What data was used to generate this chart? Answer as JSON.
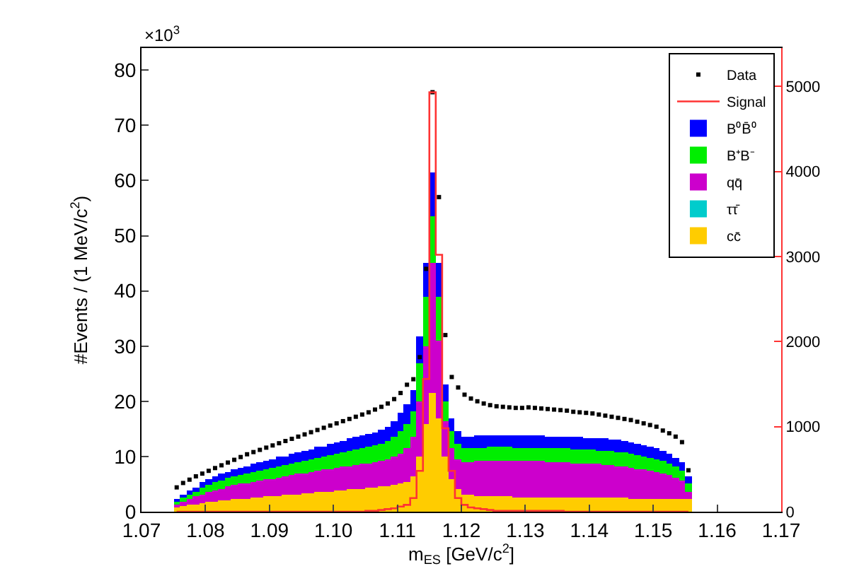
{
  "chart_data": {
    "type": "bar",
    "stacked": true,
    "xlabel": "m$_{ES}$ [GeV/c$^{2}$]",
    "ylabel": "#Events / (1 MeV/c$^{2}$)",
    "annotations": [
      "×10$^{3}$"
    ],
    "xlim": [
      1.07,
      1.17
    ],
    "xticks": [
      1.07,
      1.08,
      1.09,
      {
        "value": 1.1,
        "label": "1.10"
      },
      1.11,
      1.12,
      1.13,
      1.14,
      1.15,
      1.16,
      1.17
    ],
    "ylim": [
      0,
      84
    ],
    "yticks": [
      0,
      10,
      20,
      30,
      40,
      50,
      60,
      70,
      80
    ],
    "y2lim": [
      0,
      5450
    ],
    "y2ticks": [
      0,
      1000,
      2000,
      3000,
      4000,
      5000
    ],
    "legend": "top right",
    "x": [
      1.0755,
      1.0765,
      1.0775,
      1.0785,
      1.0795,
      1.0805,
      1.0815,
      1.0825,
      1.0835,
      1.0845,
      1.0855,
      1.0865,
      1.0875,
      1.0885,
      1.0895,
      1.0905,
      1.0915,
      1.0925,
      1.0935,
      1.0945,
      1.0955,
      1.0965,
      1.0975,
      1.0985,
      1.0995,
      1.1005,
      1.1015,
      1.1025,
      1.1035,
      1.1045,
      1.1055,
      1.1065,
      1.1075,
      1.1085,
      1.1095,
      1.1105,
      1.1115,
      1.1125,
      1.1135,
      1.1145,
      1.1155,
      1.1165,
      1.1175,
      1.1185,
      1.1195,
      1.1205,
      1.1215,
      1.1225,
      1.1235,
      1.1245,
      1.1255,
      1.1265,
      1.1275,
      1.1285,
      1.1295,
      1.1305,
      1.1315,
      1.1325,
      1.1335,
      1.1345,
      1.1355,
      1.1365,
      1.1375,
      1.1385,
      1.1395,
      1.1405,
      1.1415,
      1.1425,
      1.1435,
      1.1445,
      1.1455,
      1.1465,
      1.1475,
      1.1485,
      1.1495,
      1.1505,
      1.1515,
      1.1525,
      1.1535,
      1.1545,
      1.1555
    ],
    "series": [
      {
        "name": "Data",
        "type": "scatter",
        "marker": "square",
        "color": "#000000",
        "values": [
          4.4,
          5.2,
          5.8,
          6.4,
          6.9,
          7.4,
          7.9,
          8.4,
          8.9,
          9.4,
          9.9,
          10.4,
          10.8,
          11.2,
          11.6,
          12.0,
          12.4,
          12.8,
          13.2,
          13.6,
          14.0,
          14.4,
          14.8,
          15.2,
          15.6,
          16.0,
          16.4,
          16.8,
          17.2,
          17.6,
          18.0,
          18.5,
          19.0,
          19.6,
          20.4,
          21.5,
          23.0,
          24.0,
          28.0,
          44.0,
          76.0,
          57.0,
          32.0,
          24.4,
          22.5,
          21.2,
          20.5,
          20.0,
          19.6,
          19.3,
          19.1,
          19.0,
          18.9,
          18.8,
          18.8,
          18.9,
          18.8,
          18.7,
          18.6,
          18.5,
          18.4,
          18.3,
          18.1,
          18.0,
          17.9,
          17.8,
          17.6,
          17.4,
          17.2,
          17.0,
          16.8,
          16.6,
          16.3,
          16.0,
          15.7,
          15.4,
          14.7,
          14.2,
          13.6,
          12.6,
          7.5
        ]
      },
      {
        "name": "Signal",
        "type": "step",
        "axis": "y2",
        "color": "#ff3333",
        "values": [
          0,
          0,
          0,
          0,
          0,
          0,
          0,
          0,
          0,
          0,
          0,
          0,
          0,
          0,
          0,
          0,
          0,
          0,
          0,
          0,
          0,
          0,
          0,
          0,
          0,
          0,
          0,
          0,
          0,
          0,
          10,
          10,
          20,
          30,
          40,
          60,
          80,
          160,
          480,
          1560,
          4930,
          3020,
          980,
          480,
          160,
          80,
          50,
          40,
          30,
          20,
          10,
          10,
          10,
          10,
          10,
          10,
          10,
          10,
          10,
          10,
          10,
          0,
          0,
          0,
          0,
          0,
          0,
          0,
          0,
          0,
          0,
          0,
          0,
          0,
          0,
          0,
          0,
          0,
          0,
          0,
          0
        ]
      },
      {
        "name": "cc̄",
        "color": "#ffcc00",
        "values": [
          0.8,
          1.0,
          1.2,
          1.4,
          1.6,
          1.8,
          1.9,
          2.0,
          2.1,
          2.2,
          2.3,
          2.4,
          2.5,
          2.6,
          2.7,
          2.8,
          2.9,
          3.0,
          3.1,
          3.2,
          3.3,
          3.4,
          3.5,
          3.6,
          3.7,
          3.8,
          3.9,
          4.0,
          4.1,
          4.2,
          4.3,
          4.4,
          4.5,
          4.7,
          4.9,
          5.0,
          5.5,
          6.5,
          10.0,
          16.0,
          21.5,
          17.0,
          10.0,
          6.0,
          4.0,
          3.2,
          3.0,
          2.9,
          2.8,
          2.8,
          2.7,
          2.7,
          2.7,
          2.6,
          2.6,
          2.6,
          2.6,
          2.6,
          2.6,
          2.6,
          2.6,
          2.5,
          2.5,
          2.5,
          2.5,
          2.5,
          2.5,
          2.5,
          2.5,
          2.5,
          2.5,
          2.4,
          2.4,
          2.4,
          2.4,
          2.4,
          2.4,
          2.4,
          2.3,
          2.3,
          2.3
        ]
      },
      {
        "name": "ττ̄",
        "color": "#00cccc",
        "values": [
          0,
          0,
          0,
          0,
          0,
          0,
          0,
          0,
          0,
          0,
          0,
          0,
          0,
          0,
          0,
          0,
          0,
          0,
          0,
          0,
          0,
          0,
          0,
          0,
          0,
          0,
          0,
          0,
          0,
          0,
          0,
          0,
          0,
          0,
          0,
          0,
          0,
          0,
          0,
          0,
          0,
          0,
          0,
          0,
          0,
          0,
          0,
          0,
          0,
          0,
          0,
          0,
          0,
          0,
          0,
          0,
          0,
          0,
          0,
          0,
          0,
          0,
          0,
          0,
          0,
          0,
          0,
          0,
          0,
          0,
          0,
          0,
          0,
          0,
          0,
          0,
          0,
          0,
          0,
          0,
          0
        ]
      },
      {
        "name": "qq̄",
        "color": "#cc00cc",
        "values": [
          0.7,
          0.9,
          1.1,
          1.3,
          1.6,
          1.8,
          2.0,
          2.2,
          2.4,
          2.6,
          2.7,
          2.8,
          2.9,
          3.0,
          3.1,
          3.2,
          3.3,
          3.4,
          3.5,
          3.6,
          3.7,
          3.8,
          3.9,
          4.0,
          4.1,
          4.2,
          4.3,
          4.3,
          4.4,
          4.4,
          4.5,
          4.5,
          4.6,
          4.7,
          5.0,
          5.5,
          6.0,
          7.0,
          10.0,
          14.0,
          23.5,
          14.0,
          6.5,
          5.5,
          5.5,
          5.8,
          6.0,
          6.2,
          6.3,
          6.4,
          6.5,
          6.5,
          6.5,
          6.5,
          6.5,
          6.5,
          6.5,
          6.5,
          6.4,
          6.4,
          6.4,
          6.4,
          6.3,
          6.3,
          6.2,
          6.2,
          6.1,
          6.0,
          5.9,
          5.8,
          5.7,
          5.6,
          5.4,
          5.2,
          5.0,
          4.8,
          4.5,
          4.2,
          3.8,
          3.3,
          1.3
        ]
      },
      {
        "name": "B⁺B⁻",
        "color": "#00ee00",
        "values": [
          0.5,
          0.7,
          0.9,
          1.0,
          1.2,
          1.3,
          1.4,
          1.5,
          1.6,
          1.6,
          1.7,
          1.8,
          1.8,
          1.9,
          2.0,
          2.0,
          2.1,
          2.1,
          2.2,
          2.2,
          2.3,
          2.3,
          2.4,
          2.4,
          2.5,
          2.5,
          2.6,
          2.7,
          2.8,
          2.9,
          3.0,
          3.1,
          3.2,
          3.3,
          3.6,
          4.2,
          4.5,
          4.8,
          7.0,
          9.0,
          8.6,
          8.0,
          3.5,
          3.0,
          2.8,
          2.5,
          2.5,
          2.5,
          2.5,
          2.5,
          2.5,
          2.5,
          2.5,
          2.5,
          2.5,
          2.5,
          2.5,
          2.5,
          2.5,
          2.5,
          2.5,
          2.5,
          2.5,
          2.5,
          2.5,
          2.5,
          2.5,
          2.5,
          2.5,
          2.5,
          2.5,
          2.5,
          2.5,
          2.5,
          2.4,
          2.4,
          2.3,
          2.2,
          2.1,
          1.9,
          1.4
        ]
      },
      {
        "name": "B⁰B̄⁰",
        "color": "#0000ff",
        "values": [
          0.4,
          0.5,
          0.6,
          0.7,
          0.9,
          1.0,
          1.1,
          1.1,
          1.2,
          1.2,
          1.3,
          1.3,
          1.4,
          1.4,
          1.5,
          1.5,
          1.6,
          1.6,
          1.7,
          1.7,
          1.8,
          1.8,
          1.9,
          1.9,
          2.0,
          2.0,
          2.1,
          2.2,
          2.2,
          2.3,
          2.3,
          2.4,
          2.5,
          2.6,
          2.8,
          3.3,
          3.5,
          3.7,
          4.8,
          6.0,
          7.9,
          6.0,
          3.0,
          2.5,
          2.2,
          2.0,
          2.2,
          2.2,
          2.2,
          2.2,
          2.2,
          2.2,
          2.2,
          2.2,
          2.2,
          2.2,
          2.2,
          2.2,
          2.2,
          2.2,
          2.2,
          2.2,
          2.2,
          2.2,
          2.2,
          2.2,
          2.2,
          2.2,
          2.2,
          2.2,
          2.2,
          2.1,
          2.0,
          2.0,
          1.9,
          1.8,
          1.8,
          1.7,
          1.6,
          1.5,
          1.5
        ]
      }
    ]
  }
}
